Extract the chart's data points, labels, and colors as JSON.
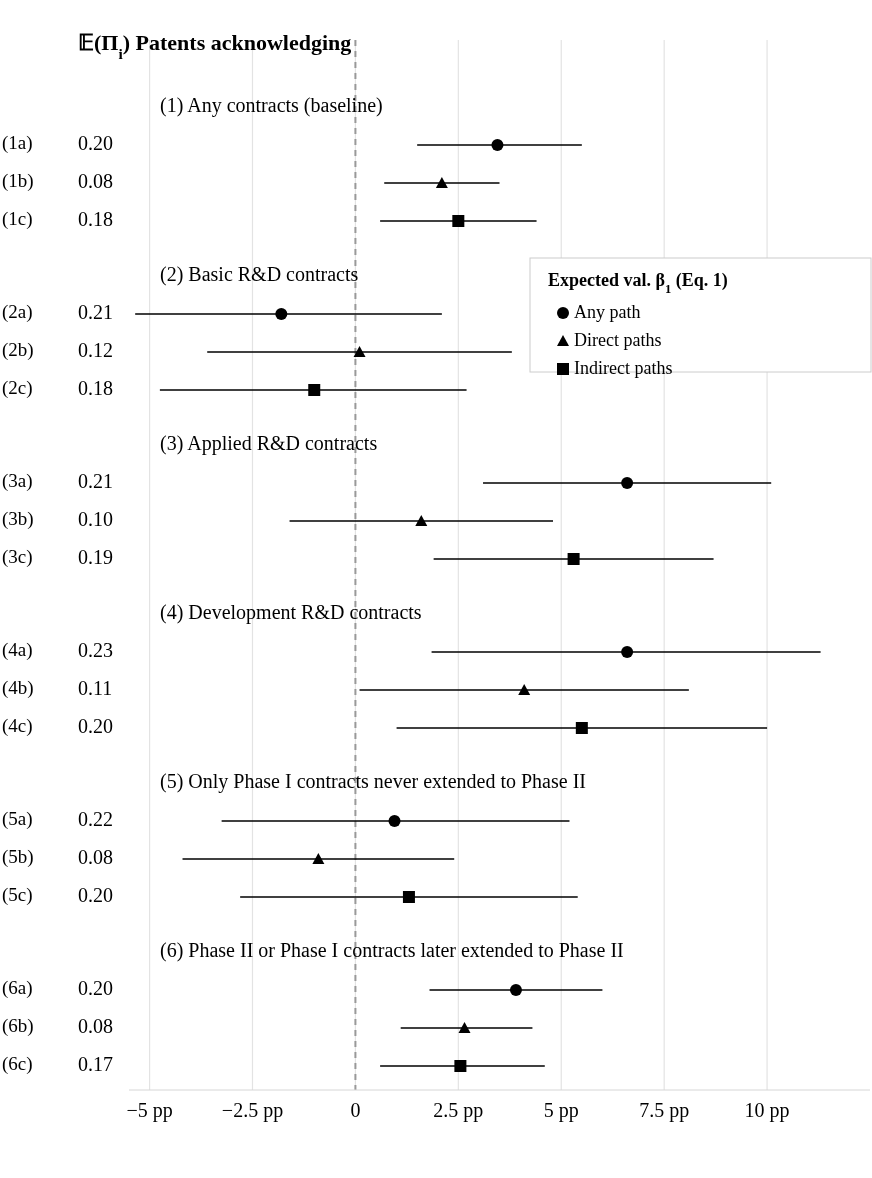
{
  "chart_data": {
    "type": "scatter",
    "orientation": "horizontal",
    "title": "𝔼(Π$_{i}$) Patents acknowledging",
    "categories": [
      "(1a)",
      "(1b)",
      "(1c)",
      "(2a)",
      "(2b)",
      "(2c)",
      "(3a)",
      "(3b)",
      "(3c)",
      "(4a)",
      "(4b)",
      "(4c)",
      "(5a)",
      "(5b)",
      "(5c)",
      "(6a)",
      "(6b)",
      "(6c)"
    ],
    "series": [
      {
        "name": "Any path",
        "color": "#000000",
        "marker": "circle",
        "values": [
          3.45,
          null,
          null,
          -1.8,
          null,
          null,
          6.6,
          null,
          null,
          6.6,
          null,
          null,
          0.95,
          null,
          null,
          3.9,
          null,
          null
        ],
        "errors": [
          [
            1.5,
            5.5
          ],
          null,
          null,
          [
            -5.35,
            2.1
          ],
          null,
          null,
          [
            3.1,
            10.1
          ],
          null,
          null,
          [
            1.85,
            11.3
          ],
          null,
          null,
          [
            -3.25,
            5.2
          ],
          null,
          null,
          [
            1.8,
            6.0
          ],
          null,
          null
        ]
      },
      {
        "name": "Direct paths",
        "color": "#000000",
        "marker": "triangle",
        "values": [
          null,
          2.1,
          null,
          null,
          0.1,
          null,
          null,
          1.6,
          null,
          null,
          4.1,
          null,
          null,
          -0.9,
          null,
          null,
          2.65,
          null
        ],
        "errors": [
          null,
          [
            0.7,
            3.5
          ],
          null,
          null,
          [
            -3.6,
            3.8
          ],
          null,
          null,
          [
            -1.6,
            4.8
          ],
          null,
          null,
          [
            0.1,
            8.1
          ],
          null,
          null,
          [
            -4.2,
            2.4
          ],
          null,
          null,
          [
            1.1,
            4.3
          ],
          null
        ]
      },
      {
        "name": "Indirect paths",
        "color": "#000000",
        "marker": "square",
        "values": [
          null,
          null,
          2.5,
          null,
          null,
          -1.0,
          null,
          null,
          5.3,
          null,
          null,
          5.5,
          null,
          null,
          1.3,
          null,
          null,
          2.55
        ],
        "errors": [
          null,
          null,
          [
            0.6,
            4.4
          ],
          null,
          null,
          [
            -4.75,
            2.7
          ],
          null,
          null,
          [
            1.9,
            8.7
          ],
          null,
          null,
          [
            1.0,
            10.0
          ],
          null,
          null,
          [
            -2.8,
            5.4
          ],
          null,
          null,
          [
            0.6,
            4.6
          ]
        ]
      }
    ],
    "xlim": [
      -5.5,
      12.5
    ],
    "xticks": [
      {
        "value": -5,
        "label": "−5 pp"
      },
      {
        "value": -2.5,
        "label": "−2.5 pp"
      },
      0,
      {
        "value": 2.5,
        "label": "2.5 pp"
      },
      {
        "value": 5,
        "label": "5 pp"
      },
      {
        "value": 7.5,
        "label": "7.5 pp"
      },
      {
        "value": 10,
        "label": "10 pp"
      }
    ],
    "grid": "x",
    "legend": "top right",
    "legend_title": "Expected val. β$_{1}$ (Eq. 1)",
    "ref_lines": [
      {
        "axis": "x",
        "value": 0,
        "color": "#999999",
        "line_style": "dashed"
      }
    ],
    "annotations": [
      "(1) Any contracts (baseline)",
      "(2) Basic R&D contracts",
      "(3) Applied R&D contracts",
      "(4) Development R&D contracts",
      "(5) Only Phase I contracts never extended to Phase II",
      "(6) Phase II or Phase I contracts later extended to Phase II",
      "0.20",
      "0.08",
      "0.18",
      "0.21",
      "0.12",
      "0.18",
      "0.21",
      "0.10",
      "0.19",
      "0.23",
      "0.11",
      "0.20",
      "0.22",
      "0.08",
      "0.20",
      "0.20",
      "0.08",
      "0.17"
    ]
  }
}
